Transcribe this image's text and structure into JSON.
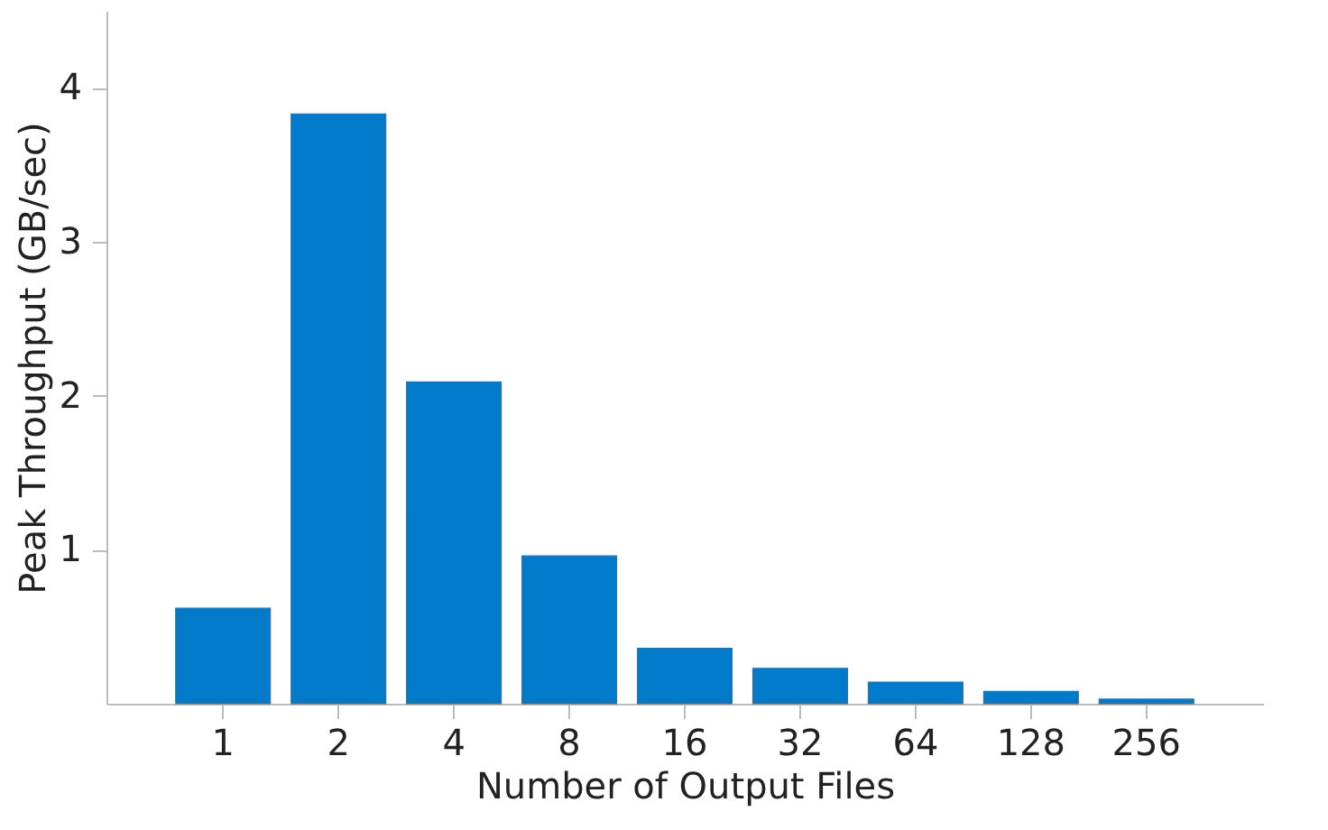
{
  "chart_data": {
    "type": "bar",
    "xlabel": "Number of Output Files",
    "ylabel": "Peak Throughput (GB/sec)",
    "categories": [
      "1",
      "2",
      "4",
      "8",
      "16",
      "32",
      "64",
      "128",
      "256"
    ],
    "values": [
      0.62,
      3.83,
      2.09,
      0.96,
      0.36,
      0.23,
      0.14,
      0.08,
      0.03
    ],
    "color": "#007ac9",
    "ylim": [
      0,
      4.5
    ],
    "yticks": [
      1,
      2,
      3,
      4
    ],
    "grid": false
  }
}
